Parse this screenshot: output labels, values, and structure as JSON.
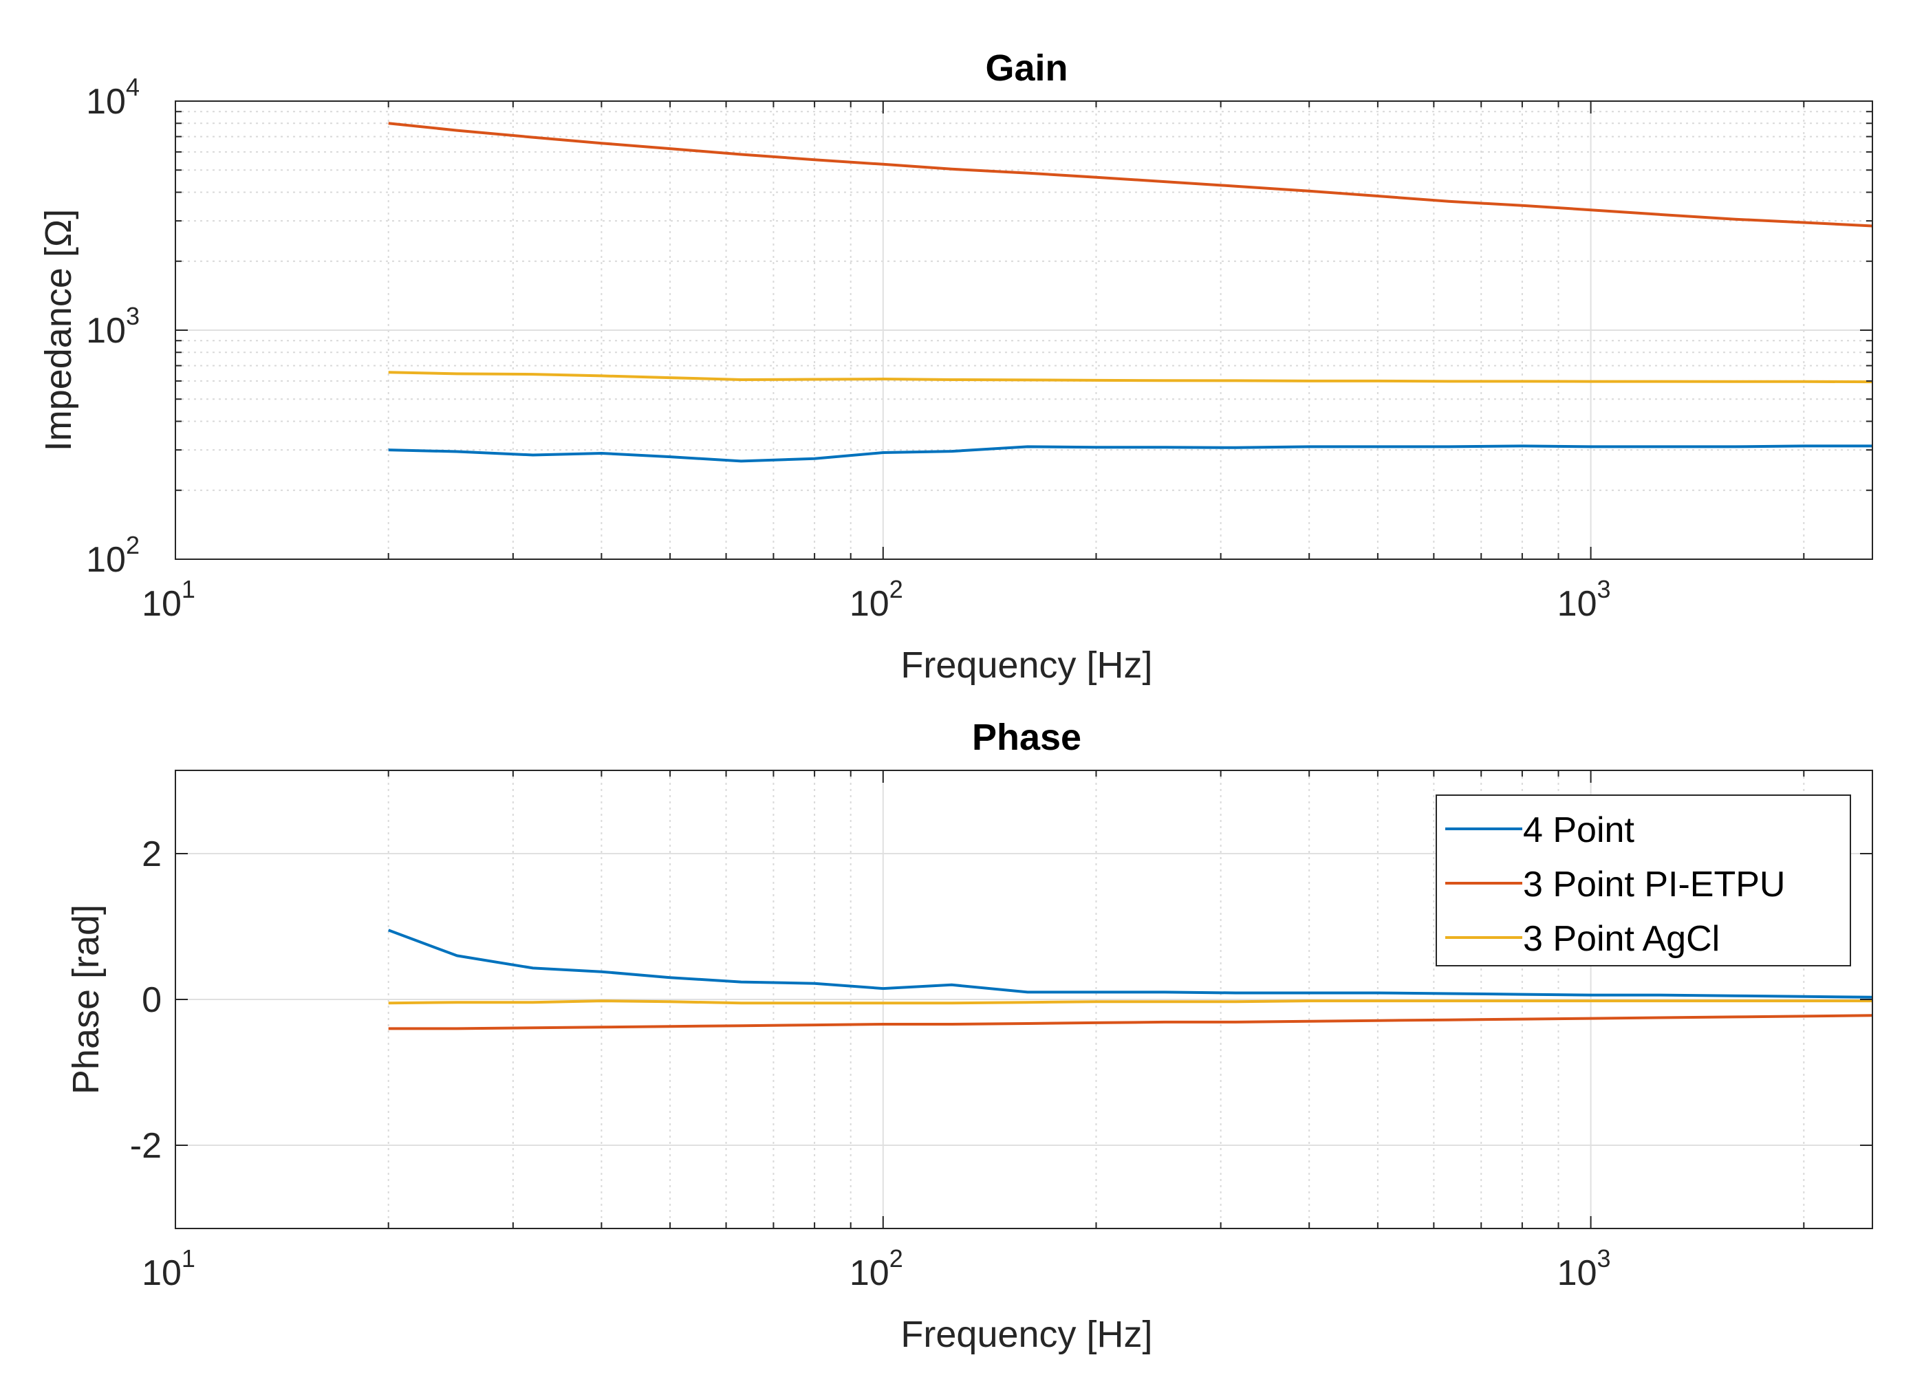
{
  "chart_data": [
    {
      "type": "line",
      "id": "gain",
      "title": "Gain",
      "xlabel": "Frequency [Hz]",
      "ylabel": "Impedance [Ω]",
      "xscale": "log",
      "yscale": "log",
      "xlim": [
        10,
        2500
      ],
      "ylim": [
        100,
        10000
      ],
      "x_ticks": [
        {
          "value": 10,
          "base": "10",
          "exp": "1"
        },
        {
          "value": 100,
          "base": "10",
          "exp": "2"
        },
        {
          "value": 1000,
          "base": "10",
          "exp": "3"
        }
      ],
      "y_ticks": [
        {
          "value": 100,
          "base": "10",
          "exp": "2"
        },
        {
          "value": 1000,
          "base": "10",
          "exp": "3"
        },
        {
          "value": 10000,
          "base": "10",
          "exp": "4"
        }
      ],
      "grid": true,
      "series": [
        {
          "name": "4 Point",
          "color": "#0072BD",
          "x": [
            20,
            25,
            32,
            40,
            50,
            63,
            80,
            100,
            125,
            160,
            200,
            250,
            315,
            400,
            500,
            630,
            800,
            1000,
            1250,
            1600,
            2000,
            2500
          ],
          "y": [
            300,
            295,
            285,
            290,
            280,
            268,
            275,
            292,
            296,
            310,
            308,
            308,
            307,
            310,
            310,
            310,
            312,
            310,
            310,
            310,
            312,
            312
          ]
        },
        {
          "name": "3 Point PI-ETPU",
          "color": "#D95319",
          "x": [
            20,
            25,
            32,
            40,
            50,
            63,
            80,
            100,
            125,
            160,
            200,
            250,
            315,
            400,
            500,
            630,
            800,
            1000,
            1250,
            1600,
            2000,
            2500
          ],
          "y": [
            8000,
            7450,
            6950,
            6550,
            6200,
            5850,
            5550,
            5300,
            5050,
            4850,
            4650,
            4450,
            4250,
            4050,
            3850,
            3650,
            3500,
            3350,
            3200,
            3050,
            2950,
            2850
          ]
        },
        {
          "name": "3 Point AgCl",
          "color": "#EDB120",
          "x": [
            20,
            25,
            32,
            40,
            50,
            63,
            80,
            100,
            125,
            160,
            200,
            250,
            315,
            400,
            500,
            630,
            800,
            1000,
            1250,
            1600,
            2000,
            2500
          ],
          "y": [
            655,
            645,
            642,
            632,
            620,
            608,
            610,
            612,
            608,
            606,
            604,
            603,
            602,
            600,
            600,
            598,
            598,
            597,
            597,
            596,
            596,
            595
          ]
        }
      ]
    },
    {
      "type": "line",
      "id": "phase",
      "title": "Phase",
      "xlabel": "Frequency [Hz]",
      "ylabel": "Phase [rad]",
      "xscale": "log",
      "yscale": "linear",
      "xlim": [
        10,
        2500
      ],
      "ylim": [
        -3.14159,
        3.14159
      ],
      "x_ticks": [
        {
          "value": 10,
          "base": "10",
          "exp": "1"
        },
        {
          "value": 100,
          "base": "10",
          "exp": "2"
        },
        {
          "value": 1000,
          "base": "10",
          "exp": "3"
        }
      ],
      "y_ticks": [
        {
          "value": -2,
          "label": "-2"
        },
        {
          "value": 0,
          "label": "0"
        },
        {
          "value": 2,
          "label": "2"
        }
      ],
      "grid": true,
      "legend": {
        "position": "top-right",
        "entries": [
          "4 Point",
          "3 Point PI-ETPU",
          "3 Point AgCl"
        ]
      },
      "series": [
        {
          "name": "4 Point",
          "color": "#0072BD",
          "x": [
            20,
            25,
            32,
            40,
            50,
            63,
            80,
            100,
            125,
            160,
            200,
            250,
            315,
            400,
            500,
            630,
            800,
            1000,
            1250,
            1600,
            2000,
            2500
          ],
          "y": [
            0.95,
            0.6,
            0.43,
            0.38,
            0.3,
            0.24,
            0.22,
            0.15,
            0.2,
            0.1,
            0.1,
            0.1,
            0.09,
            0.09,
            0.09,
            0.08,
            0.07,
            0.06,
            0.06,
            0.05,
            0.04,
            0.03
          ]
        },
        {
          "name": "3 Point PI-ETPU",
          "color": "#D95319",
          "x": [
            20,
            25,
            32,
            40,
            50,
            63,
            80,
            100,
            125,
            160,
            200,
            250,
            315,
            400,
            500,
            630,
            800,
            1000,
            1250,
            1600,
            2000,
            2500
          ],
          "y": [
            -0.4,
            -0.4,
            -0.39,
            -0.38,
            -0.37,
            -0.36,
            -0.35,
            -0.34,
            -0.34,
            -0.33,
            -0.32,
            -0.31,
            -0.31,
            -0.3,
            -0.29,
            -0.28,
            -0.27,
            -0.26,
            -0.25,
            -0.24,
            -0.23,
            -0.22
          ]
        },
        {
          "name": "3 Point AgCl",
          "color": "#EDB120",
          "x": [
            20,
            25,
            32,
            40,
            50,
            63,
            80,
            100,
            125,
            160,
            200,
            250,
            315,
            400,
            500,
            630,
            800,
            1000,
            1250,
            1600,
            2000,
            2500
          ],
          "y": [
            -0.05,
            -0.04,
            -0.04,
            -0.02,
            -0.03,
            -0.05,
            -0.05,
            -0.05,
            -0.05,
            -0.04,
            -0.03,
            -0.03,
            -0.03,
            -0.02,
            -0.02,
            -0.02,
            -0.02,
            -0.02,
            -0.02,
            -0.02,
            -0.02,
            -0.02
          ]
        }
      ]
    }
  ]
}
